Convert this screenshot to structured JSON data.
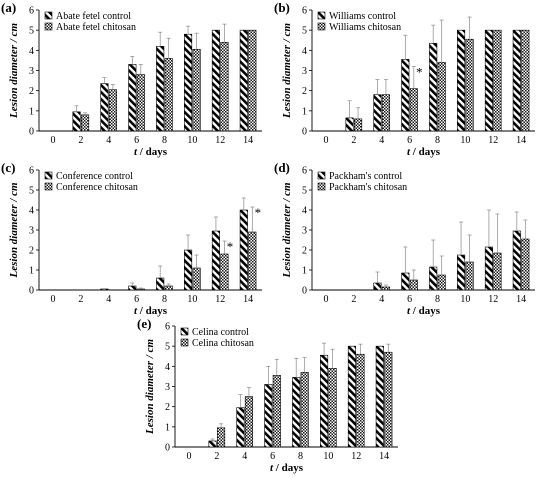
{
  "chart_data": [
    {
      "panel_label": "(a)",
      "type": "bar",
      "xlabel_var": "t",
      "xlabel_unit": " / days",
      "ylabel": "Lesion diameter / cm",
      "x_ticks": [
        "0",
        "2",
        "4",
        "6",
        "8",
        "10",
        "12",
        "14"
      ],
      "y_ticks": [
        "0",
        "1",
        "2",
        "3",
        "4",
        "5",
        "6"
      ],
      "ylim": [
        0,
        6
      ],
      "legend_position": "top-left",
      "series": [
        {
          "name": "Abate fetel control",
          "pattern": "diagonal-stripes",
          "values": [
            0,
            0.95,
            2.35,
            3.3,
            4.2,
            4.8,
            5.0,
            5.0
          ],
          "errors": [
            0,
            0.3,
            0.3,
            0.4,
            0.7,
            0.4,
            0.0,
            0.0
          ]
        },
        {
          "name": "Abate fetel chitosan",
          "pattern": "crosshatch",
          "values": [
            0,
            0.8,
            2.05,
            2.8,
            3.6,
            4.05,
            4.4,
            5.0
          ],
          "errors": [
            0,
            0.1,
            0.25,
            0.5,
            1.0,
            0.8,
            0.9,
            0.0
          ]
        }
      ],
      "annotations": []
    },
    {
      "panel_label": "(b)",
      "type": "bar",
      "xlabel_var": "t",
      "xlabel_unit": " / days",
      "ylabel": "Lesion diameter / cm",
      "x_ticks": [
        "0",
        "2",
        "4",
        "6",
        "8",
        "10",
        "12",
        "14"
      ],
      "y_ticks": [
        "0",
        "1",
        "2",
        "3",
        "4",
        "5",
        "6"
      ],
      "ylim": [
        0,
        6
      ],
      "legend_position": "top-left",
      "series": [
        {
          "name": "Williams control",
          "pattern": "diagonal-stripes",
          "values": [
            0,
            0.65,
            1.8,
            3.55,
            4.35,
            5.0,
            5.0,
            5.0
          ],
          "errors": [
            0,
            0.85,
            0.75,
            1.2,
            0.9,
            0.0,
            0.0,
            0.0
          ]
        },
        {
          "name": "Williams chitosan",
          "pattern": "crosshatch",
          "values": [
            0,
            0.6,
            1.8,
            2.1,
            3.4,
            4.55,
            5.0,
            5.0
          ],
          "errors": [
            0,
            0.55,
            0.75,
            1.1,
            2.1,
            1.1,
            0.0,
            0.0
          ]
        }
      ],
      "annotations": [
        {
          "text": "*",
          "x_index": 3
        }
      ]
    },
    {
      "panel_label": "(c)",
      "type": "bar",
      "xlabel_var": "t",
      "xlabel_unit": " / days",
      "ylabel": "Lesion diameter / cm",
      "x_ticks": [
        "0",
        "2",
        "4",
        "6",
        "8",
        "10",
        "12",
        "14"
      ],
      "y_ticks": [
        "0",
        "1",
        "2",
        "3",
        "4",
        "5",
        "6"
      ],
      "ylim": [
        0,
        6
      ],
      "legend_position": "top-left",
      "series": [
        {
          "name": "Conference control",
          "pattern": "diagonal-stripes",
          "values": [
            0,
            0,
            0.05,
            0.2,
            0.6,
            2.0,
            2.95,
            4.0
          ],
          "errors": [
            0,
            0,
            0.02,
            0.15,
            0.6,
            0.75,
            0.7,
            0.6
          ]
        },
        {
          "name": "Conference chitosan",
          "pattern": "crosshatch",
          "values": [
            0,
            0,
            0,
            0.05,
            0.2,
            1.1,
            1.8,
            2.9
          ],
          "errors": [
            0,
            0,
            0,
            0.05,
            0.1,
            0.65,
            0.65,
            1.25
          ]
        }
      ],
      "annotations": [
        {
          "text": "*",
          "x_index": 6
        },
        {
          "text": "*",
          "x_index": 7
        }
      ]
    },
    {
      "panel_label": "(d)",
      "type": "bar",
      "xlabel_var": "t",
      "xlabel_unit": " / days",
      "ylabel": "Lesion diameter / cm",
      "x_ticks": [
        "0",
        "2",
        "4",
        "6",
        "8",
        "10",
        "12",
        "14"
      ],
      "y_ticks": [
        "0",
        "1",
        "2",
        "3",
        "4",
        "5",
        "6"
      ],
      "ylim": [
        0,
        6
      ],
      "legend_position": "top-left",
      "series": [
        {
          "name": "Packham's control",
          "pattern": "diagonal-stripes",
          "values": [
            0,
            0,
            0.35,
            0.85,
            1.15,
            1.75,
            2.15,
            2.95
          ],
          "errors": [
            0,
            0,
            0.55,
            1.3,
            1.35,
            1.65,
            1.85,
            0.95
          ]
        },
        {
          "name": "Packham's chitosan",
          "pattern": "crosshatch",
          "values": [
            0,
            0,
            0.15,
            0.5,
            0.75,
            1.4,
            1.85,
            2.55
          ],
          "errors": [
            0,
            0,
            0.1,
            0.5,
            0.95,
            1.35,
            1.95,
            0.95
          ]
        }
      ],
      "annotations": []
    },
    {
      "panel_label": "(e)",
      "type": "bar",
      "xlabel_var": "t",
      "xlabel_unit": " / days",
      "ylabel": "Lesion diameter / cm",
      "x_ticks": [
        "0",
        "2",
        "4",
        "6",
        "8",
        "10",
        "12",
        "14"
      ],
      "y_ticks": [
        "0",
        "1",
        "2",
        "3",
        "4",
        "5",
        "6"
      ],
      "ylim": [
        0,
        6
      ],
      "legend_position": "top-left",
      "series": [
        {
          "name": "Celina control",
          "pattern": "diagonal-stripes",
          "values": [
            0,
            0.3,
            1.95,
            3.1,
            3.45,
            4.55,
            5.0,
            5.0
          ],
          "errors": [
            0,
            0.1,
            0.65,
            0.9,
            0.95,
            0.6,
            0.0,
            0.0
          ]
        },
        {
          "name": "Celina chitosan",
          "pattern": "crosshatch",
          "values": [
            0,
            0.95,
            2.5,
            3.55,
            3.7,
            3.9,
            4.6,
            4.7
          ],
          "errors": [
            0,
            0.2,
            0.45,
            0.8,
            0.75,
            0.95,
            0.5,
            0.4
          ]
        }
      ],
      "annotations": []
    }
  ]
}
